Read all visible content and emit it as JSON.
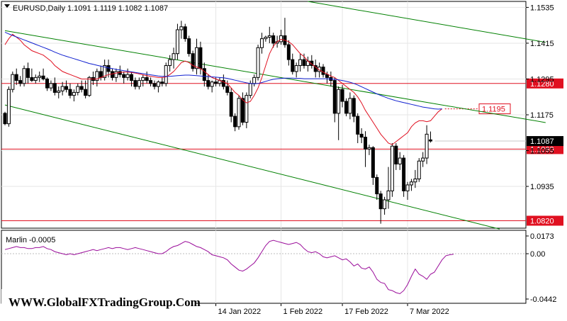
{
  "symbol_header": "EURUSD,Daily  1.1091 1.1119 1.1082 1.1087",
  "indicator_header": "Marlin -0.0005",
  "watermark": "WWW.GlobalFXTradingGroup.Com",
  "colors": {
    "background": "#ffffff",
    "grid": "#e6e6e6",
    "candle": "#000000",
    "ma_fast": "#e01020",
    "ma_slow": "#1020d0",
    "channel": "#008000",
    "level": "#e01020",
    "oscillator": "#9a0c9a"
  },
  "chart_data": [
    {
      "type": "candlestick",
      "title": "EURUSD,Daily  1.1091 1.1119 1.1082 1.1087",
      "ylim": [
        1.0795,
        1.1555
      ],
      "y_ticks": [
        "1.1535",
        "1.1415",
        "1.1295",
        "1.1175",
        "1.1055",
        "1.0935"
      ],
      "x_ticks": [
        "14 Jan 2022",
        "1 Feb 2022",
        "17 Feb 2022",
        "7 Mar 2022"
      ],
      "last_price": "1.1087",
      "horizontal_levels": [
        {
          "value": 1.128,
          "label": "1.1280"
        },
        {
          "value": 1.106,
          "label": "1.1060"
        },
        {
          "value": 1.082,
          "label": "1.0820"
        }
      ],
      "annotation": {
        "value": 1.1195,
        "label": "1.1195"
      },
      "channel_lines": [
        {
          "from": [
            0,
            1.1457
          ],
          "to": [
            141,
            1.1149
          ]
        },
        {
          "from": [
            0,
            1.1208
          ],
          "to": [
            129,
            1.0792
          ]
        },
        {
          "from": [
            79,
            1.1555
          ],
          "to": [
            141,
            1.1418
          ]
        }
      ],
      "candles": [
        [
          1.118,
          1.1185,
          1.114,
          1.1145
        ],
        [
          1.1145,
          1.127,
          1.1135,
          1.126
        ],
        [
          1.126,
          1.132,
          1.125,
          1.131
        ],
        [
          1.131,
          1.133,
          1.1275,
          1.129
        ],
        [
          1.129,
          1.1305,
          1.127,
          1.128
        ],
        [
          1.128,
          1.134,
          1.127,
          1.133
        ],
        [
          1.133,
          1.135,
          1.128,
          1.13
        ],
        [
          1.13,
          1.133,
          1.1285,
          1.129
        ],
        [
          1.129,
          1.131,
          1.128,
          1.13
        ],
        [
          1.13,
          1.132,
          1.1285,
          1.1305
        ],
        [
          1.1305,
          1.133,
          1.129,
          1.1295
        ],
        [
          1.1295,
          1.13,
          1.1255,
          1.1265
        ],
        [
          1.1265,
          1.129,
          1.1255,
          1.128
        ],
        [
          1.128,
          1.13,
          1.124,
          1.125
        ],
        [
          1.125,
          1.127,
          1.123,
          1.1255
        ],
        [
          1.1255,
          1.1285,
          1.124,
          1.127
        ],
        [
          1.127,
          1.129,
          1.125,
          1.126
        ],
        [
          1.126,
          1.128,
          1.123,
          1.124
        ],
        [
          1.124,
          1.126,
          1.122,
          1.125
        ],
        [
          1.125,
          1.128,
          1.124,
          1.127
        ],
        [
          1.127,
          1.129,
          1.125,
          1.126
        ],
        [
          1.126,
          1.129,
          1.123,
          1.124
        ],
        [
          1.124,
          1.1305,
          1.1235,
          1.13
        ],
        [
          1.13,
          1.132,
          1.1275,
          1.129
        ],
        [
          1.129,
          1.133,
          1.127,
          1.132
        ],
        [
          1.132,
          1.134,
          1.129,
          1.13
        ],
        [
          1.13,
          1.136,
          1.129,
          1.134
        ],
        [
          1.134,
          1.136,
          1.13,
          1.132
        ],
        [
          1.132,
          1.133,
          1.129,
          1.13
        ],
        [
          1.13,
          1.133,
          1.1285,
          1.132
        ],
        [
          1.132,
          1.134,
          1.13,
          1.131
        ],
        [
          1.131,
          1.132,
          1.128,
          1.13
        ],
        [
          1.13,
          1.133,
          1.129,
          1.131
        ],
        [
          1.131,
          1.132,
          1.127,
          1.129
        ],
        [
          1.129,
          1.13,
          1.126,
          1.127
        ],
        [
          1.127,
          1.13,
          1.126,
          1.129
        ],
        [
          1.129,
          1.131,
          1.127,
          1.13
        ],
        [
          1.13,
          1.132,
          1.128,
          1.129
        ],
        [
          1.129,
          1.13,
          1.127,
          1.128
        ],
        [
          1.128,
          1.129,
          1.126,
          1.127
        ],
        [
          1.127,
          1.129,
          1.125,
          1.1285
        ],
        [
          1.1285,
          1.13,
          1.127,
          1.128
        ],
        [
          1.128,
          1.135,
          1.127,
          1.134
        ],
        [
          1.134,
          1.1375,
          1.132,
          1.136
        ],
        [
          1.136,
          1.14,
          1.133,
          1.138
        ],
        [
          1.138,
          1.148,
          1.136,
          1.146
        ],
        [
          1.146,
          1.149,
          1.143,
          1.147
        ],
        [
          1.147,
          1.148,
          1.142,
          1.143
        ],
        [
          1.143,
          1.144,
          1.137,
          1.138
        ],
        [
          1.138,
          1.139,
          1.132,
          1.133
        ],
        [
          1.133,
          1.143,
          1.131,
          1.14
        ],
        [
          1.14,
          1.142,
          1.131,
          1.133
        ],
        [
          1.133,
          1.135,
          1.127,
          1.129
        ],
        [
          1.129,
          1.131,
          1.126,
          1.127
        ],
        [
          1.127,
          1.129,
          1.125,
          1.1285
        ],
        [
          1.1285,
          1.13,
          1.127,
          1.128
        ],
        [
          1.128,
          1.13,
          1.127,
          1.129
        ],
        [
          1.129,
          1.131,
          1.126,
          1.127
        ],
        [
          1.127,
          1.129,
          1.124,
          1.125
        ],
        [
          1.125,
          1.1265,
          1.115,
          1.117
        ],
        [
          1.117,
          1.118,
          1.112,
          1.1135
        ],
        [
          1.1135,
          1.124,
          1.1125,
          1.123
        ],
        [
          1.123,
          1.125,
          1.114,
          1.115
        ],
        [
          1.115,
          1.125,
          1.113,
          1.124
        ],
        [
          1.124,
          1.129,
          1.123,
          1.128
        ],
        [
          1.128,
          1.131,
          1.127,
          1.13
        ],
        [
          1.13,
          1.141,
          1.129,
          1.14
        ],
        [
          1.14,
          1.145,
          1.138,
          1.143
        ],
        [
          1.143,
          1.144,
          1.142,
          1.1435
        ],
        [
          1.1435,
          1.147,
          1.1415,
          1.144
        ],
        [
          1.144,
          1.145,
          1.14,
          1.1415
        ],
        [
          1.1415,
          1.144,
          1.14,
          1.142
        ],
        [
          1.142,
          1.146,
          1.141,
          1.144
        ],
        [
          1.144,
          1.15,
          1.14,
          1.141
        ],
        [
          1.141,
          1.1425,
          1.134,
          1.136
        ],
        [
          1.136,
          1.138,
          1.131,
          1.132
        ],
        [
          1.132,
          1.135,
          1.13,
          1.134
        ],
        [
          1.134,
          1.138,
          1.132,
          1.136
        ],
        [
          1.136,
          1.138,
          1.133,
          1.134
        ],
        [
          1.134,
          1.137,
          1.132,
          1.1355
        ],
        [
          1.1355,
          1.1375,
          1.133,
          1.134
        ],
        [
          1.134,
          1.136,
          1.13,
          1.132
        ],
        [
          1.132,
          1.135,
          1.13,
          1.1335
        ],
        [
          1.1335,
          1.1345,
          1.13,
          1.131
        ],
        [
          1.131,
          1.132,
          1.128,
          1.13
        ],
        [
          1.13,
          1.132,
          1.127,
          1.129
        ],
        [
          1.129,
          1.13,
          1.115,
          1.118
        ],
        [
          1.118,
          1.127,
          1.109,
          1.126
        ],
        [
          1.126,
          1.1275,
          1.12,
          1.122
        ],
        [
          1.122,
          1.123,
          1.117,
          1.118
        ],
        [
          1.118,
          1.125,
          1.116,
          1.123
        ],
        [
          1.123,
          1.124,
          1.115,
          1.117
        ],
        [
          1.117,
          1.118,
          1.108,
          1.111
        ],
        [
          1.111,
          1.113,
          1.108,
          1.11
        ],
        [
          1.11,
          1.112,
          1.1,
          1.106
        ],
        [
          1.106,
          1.1075,
          1.104,
          1.1065
        ],
        [
          1.1065,
          1.107,
          1.094,
          1.0965
        ],
        [
          1.0965,
          1.0975,
          1.089,
          1.091
        ],
        [
          1.091,
          1.092,
          1.081,
          1.086
        ],
        [
          1.086,
          1.09,
          1.084,
          1.089
        ],
        [
          1.089,
          1.1,
          1.086,
          1.092
        ],
        [
          1.092,
          1.108,
          1.09,
          1.107
        ],
        [
          1.107,
          1.108,
          1.099,
          1.101
        ],
        [
          1.101,
          1.105,
          1.099,
          1.103
        ],
        [
          1.103,
          1.104,
          1.09,
          1.092
        ],
        [
          1.092,
          1.095,
          1.089,
          1.094
        ],
        [
          1.094,
          1.096,
          1.092,
          1.095
        ],
        [
          1.095,
          1.099,
          1.093,
          1.096
        ],
        [
          1.096,
          1.103,
          1.095,
          1.102
        ],
        [
          1.102,
          1.105,
          1.1,
          1.103
        ],
        [
          1.103,
          1.114,
          1.101,
          1.111
        ],
        [
          1.1091,
          1.1119,
          1.1082,
          1.1087
        ]
      ],
      "moving_averages": [
        {
          "color": "red",
          "values": [
            1.141,
            1.143,
            1.1445,
            1.1435,
            1.1425,
            1.141,
            1.14,
            1.139,
            1.1385,
            1.138,
            1.1375,
            1.1365,
            1.1355,
            1.134,
            1.133,
            1.132,
            1.1315,
            1.131,
            1.1305,
            1.13,
            1.1295,
            1.1295,
            1.1295,
            1.1295,
            1.1295,
            1.13,
            1.1305,
            1.131,
            1.1312,
            1.1315,
            1.1317,
            1.1318,
            1.1318,
            1.1317,
            1.1315,
            1.1312,
            1.1309,
            1.1306,
            1.1304,
            1.1302,
            1.13,
            1.13,
            1.1302,
            1.131,
            1.132,
            1.1335,
            1.135,
            1.1355,
            1.135,
            1.134,
            1.1335,
            1.133,
            1.132,
            1.131,
            1.13,
            1.1295,
            1.129,
            1.1285,
            1.128,
            1.1265,
            1.125,
            1.124,
            1.1225,
            1.1215,
            1.122,
            1.124,
            1.1265,
            1.13,
            1.134,
            1.138,
            1.1405,
            1.142,
            1.1428,
            1.1425,
            1.142,
            1.141,
            1.1395,
            1.138,
            1.137,
            1.1355,
            1.1345,
            1.1335,
            1.1325,
            1.1318,
            1.1312,
            1.1305,
            1.13,
            1.129,
            1.128,
            1.127,
            1.126,
            1.125,
            1.1235,
            1.1215,
            1.119,
            1.117,
            1.115,
            1.113,
            1.111,
            1.1095,
            1.108,
            1.1075,
            1.1085,
            1.1095,
            1.1105,
            1.1115,
            1.1135,
            1.1148,
            1.1155,
            1.1155,
            1.1152,
            1.1155,
            1.117,
            1.1185,
            1.1195
          ]
        },
        {
          "color": "blue",
          "values": [
            1.1452,
            1.1446,
            1.1441,
            1.1436,
            1.1431,
            1.1426,
            1.1421,
            1.1416,
            1.1411,
            1.1406,
            1.1401,
            1.1396,
            1.1391,
            1.1385,
            1.138,
            1.1375,
            1.1371,
            1.1367,
            1.1363,
            1.1359,
            1.1355,
            1.1351,
            1.1347,
            1.1344,
            1.1341,
            1.1338,
            1.1335,
            1.1332,
            1.133,
            1.1327,
            1.1325,
            1.1323,
            1.1321,
            1.1319,
            1.1317,
            1.1315,
            1.1313,
            1.1311,
            1.1309,
            1.1307,
            1.1305,
            1.1304,
            1.1304,
            1.1304,
            1.1305,
            1.1306,
            1.1307,
            1.1308,
            1.1308,
            1.1307,
            1.1306,
            1.1305,
            1.1304,
            1.1303,
            1.1302,
            1.1301,
            1.13,
            1.1299,
            1.1297,
            1.1294,
            1.1291,
            1.1288,
            1.1285,
            1.1282,
            1.128,
            1.1279,
            1.128,
            1.1283,
            1.1287,
            1.1291,
            1.1294,
            1.1296,
            1.1297,
            1.1298,
            1.1298,
            1.1298,
            1.1297,
            1.1297,
            1.1296,
            1.1296,
            1.1296,
            1.1296,
            1.1296,
            1.1296,
            1.1296,
            1.1295,
            1.1294,
            1.1292,
            1.129,
            1.1287,
            1.1284,
            1.128,
            1.1275,
            1.1269,
            1.1263,
            1.1257,
            1.1251,
            1.1245,
            1.124,
            1.1235,
            1.123,
            1.1226,
            1.1222,
            1.1219,
            1.1216,
            1.1213,
            1.121,
            1.1207,
            1.1204,
            1.1201,
            1.1199,
            1.1197,
            1.1195,
            1.1194,
            1.1195
          ]
        }
      ]
    },
    {
      "type": "line",
      "title": "Marlin -0.0005",
      "ylim": [
        -0.0442,
        0.0173
      ],
      "y_ticks": [
        "0.0173",
        "0.00",
        "-0.0442"
      ],
      "series": [
        {
          "values": [
            0.004,
            0.005,
            0.006,
            0.007,
            0.006,
            0.006,
            0.005,
            0.005,
            0.006,
            0.006,
            0.007,
            0.005,
            0.004,
            0.002,
            0.001,
            0.0,
            -0.001,
            0.0,
            -0.001,
            0.0,
            0.001,
            0.002,
            0.003,
            0.004,
            0.003,
            0.004,
            0.005,
            0.006,
            0.005,
            0.006,
            0.006,
            0.005,
            0.004,
            0.005,
            0.006,
            0.005,
            0.004,
            0.003,
            0.002,
            0.001,
            0.0,
            0.0,
            0.002,
            0.005,
            0.007,
            0.008,
            0.01,
            0.012,
            0.011,
            0.009,
            0.007,
            0.006,
            0.004,
            0.002,
            -0.001,
            -0.002,
            -0.003,
            -0.004,
            -0.006,
            -0.01,
            -0.013,
            -0.016,
            -0.017,
            -0.015,
            -0.012,
            -0.009,
            -0.004,
            0.002,
            0.008,
            0.012,
            0.013,
            0.012,
            0.011,
            0.01,
            0.009,
            0.01,
            0.011,
            0.009,
            0.005,
            0.002,
            0.001,
            0.002,
            0.0,
            -0.003,
            -0.004,
            -0.003,
            -0.002,
            -0.004,
            -0.006,
            -0.005,
            -0.008,
            -0.012,
            -0.01,
            -0.014,
            -0.015,
            -0.013,
            -0.018,
            -0.025,
            -0.028,
            -0.029,
            -0.035,
            -0.036,
            -0.038,
            -0.039,
            -0.036,
            -0.03,
            -0.022,
            -0.015,
            -0.02,
            -0.022,
            -0.025,
            -0.02,
            -0.018,
            -0.012,
            -0.006,
            -0.002,
            -0.001,
            -0.0005
          ]
        }
      ],
      "zero_line": 0.0
    }
  ],
  "labels": {
    "x_ticks": [
      "14 Jan 2022",
      "1 Feb 2022",
      "17 Feb 2022",
      "7 Mar 2022"
    ],
    "price_ticks": [
      "1.1535",
      "1.1415",
      "1.1295",
      "1.1175",
      "1.1055",
      "1.0935"
    ],
    "level_1280": "1.1280",
    "level_1060": "1.1060",
    "level_0820": "1.0820",
    "price_tag": "1.1087",
    "annotation_1195": "1.1195",
    "osc_ticks": [
      "0.0173",
      "0.00",
      "-0.0442"
    ]
  }
}
